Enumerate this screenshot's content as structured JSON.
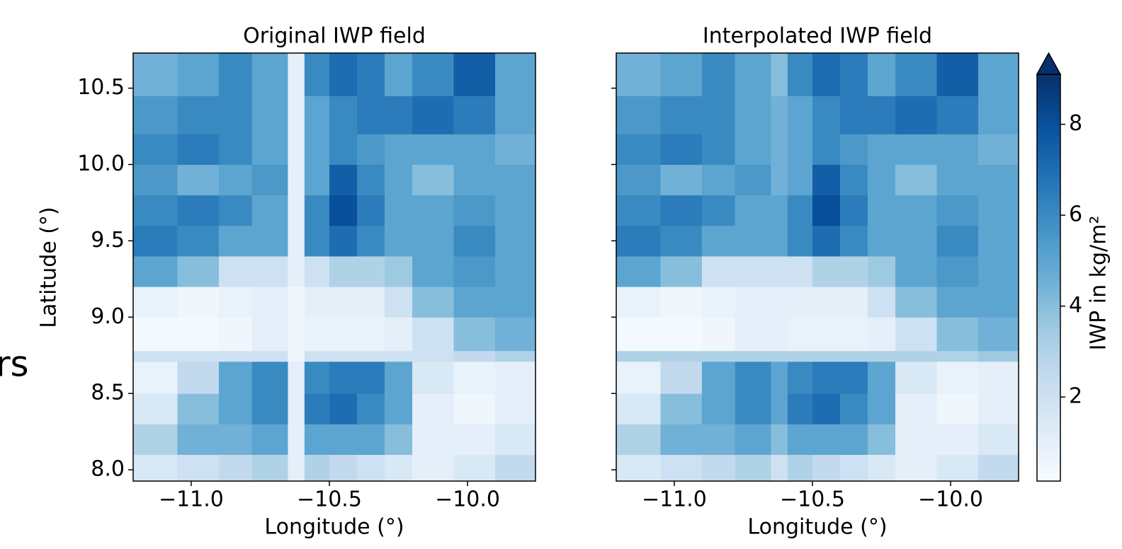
{
  "fragment": "rs",
  "chart_data": [
    {
      "type": "heatmap",
      "title": "Original IWP field",
      "xlabel": "Longitude (°)",
      "ylabel": "Latitude (°)",
      "xlim": [
        -11.21,
        -9.754
      ],
      "ylim": [
        7.926,
        10.73
      ],
      "zlim": [
        0.15,
        9.1
      ],
      "xticks": [
        {
          "value": -11,
          "label": "−11.0"
        },
        {
          "value": -10.5,
          "label": "−10.5"
        },
        {
          "value": -10,
          "label": "−10.0"
        }
      ],
      "yticks": [
        {
          "value": 8,
          "label": "8.0"
        },
        8.5,
        {
          "value": 9,
          "label": "9.0"
        },
        9.5,
        {
          "value": 10,
          "label": "10.0"
        },
        10.5
      ],
      "ytick_labels": true,
      "x_edges": [
        -11.21,
        -11.05,
        -10.9,
        -10.78,
        -10.65,
        -10.59,
        -10.5,
        -10.4,
        -10.3,
        -10.2,
        -10.05,
        -9.9,
        -9.754
      ],
      "y_edges": [
        7.926,
        8.1,
        8.3,
        8.5,
        8.71,
        8.78,
        9.0,
        9.2,
        9.4,
        9.6,
        9.8,
        10.0,
        10.2,
        10.45,
        10.73
      ],
      "z": [
        [
          1.5,
          2,
          2.5,
          3,
          1,
          3,
          2.5,
          2,
          1.5,
          1,
          1.5,
          2.5
        ],
        [
          3,
          4.5,
          4.5,
          5,
          1,
          5,
          5,
          5,
          4,
          1,
          1,
          1.5
        ],
        [
          1.5,
          4,
          5,
          6,
          1,
          6.5,
          7,
          6,
          5,
          1,
          0.5,
          1
        ],
        [
          0.8,
          2.5,
          5,
          6,
          1,
          6,
          6.5,
          6.5,
          5,
          1.5,
          0.8,
          1
        ],
        [
          2,
          2,
          2,
          2,
          0.5,
          2,
          2,
          2,
          2,
          2,
          2.5,
          3
        ],
        [
          0.3,
          0.3,
          0.5,
          1,
          0.5,
          0.8,
          0.8,
          0.8,
          1,
          2,
          4,
          4.5
        ],
        [
          0.8,
          0.5,
          0.8,
          1,
          0.5,
          1,
          1,
          1,
          2,
          4,
          5,
          5
        ],
        [
          5,
          4,
          2,
          2,
          1,
          2,
          3,
          3,
          3.5,
          5,
          5.5,
          5
        ],
        [
          6.5,
          6,
          5,
          5,
          1,
          6,
          7,
          6,
          5,
          5,
          6,
          5
        ],
        [
          6,
          6.5,
          6,
          5,
          1,
          6,
          8,
          6.5,
          5,
          5,
          5.5,
          5
        ],
        [
          5.5,
          4.5,
          5,
          5.5,
          1,
          5,
          7.5,
          6,
          5,
          4,
          5,
          5
        ],
        [
          6,
          6.5,
          6,
          5,
          1,
          5,
          6,
          5.5,
          5,
          5,
          5,
          4.5
        ],
        [
          5.5,
          6,
          6,
          5,
          1,
          5,
          6,
          6.5,
          6.5,
          7,
          6.5,
          5
        ],
        [
          4.5,
          5,
          6,
          5,
          1,
          6,
          7,
          6.5,
          5,
          6,
          7.5,
          5
        ]
      ]
    },
    {
      "type": "heatmap",
      "title": "Interpolated IWP field",
      "xlabel": "Longitude (°)",
      "xlim": [
        -11.21,
        -9.754
      ],
      "ylim": [
        7.926,
        10.73
      ],
      "zlim": [
        0.15,
        9.1
      ],
      "xticks": [
        {
          "value": -11,
          "label": "−11.0"
        },
        {
          "value": -10.5,
          "label": "−10.5"
        },
        {
          "value": -10,
          "label": "−10.0"
        }
      ],
      "yticks": [
        8,
        8.5,
        9,
        9.5,
        10,
        10.5
      ],
      "ytick_labels": false,
      "x_edges": [
        -11.21,
        -11.05,
        -10.9,
        -10.78,
        -10.65,
        -10.59,
        -10.5,
        -10.4,
        -10.3,
        -10.2,
        -10.05,
        -9.9,
        -9.754
      ],
      "y_edges": [
        7.926,
        8.1,
        8.3,
        8.5,
        8.71,
        8.78,
        9.0,
        9.2,
        9.4,
        9.6,
        9.8,
        10.0,
        10.2,
        10.45,
        10.73
      ],
      "z": [
        [
          1.5,
          2,
          2.5,
          3,
          2,
          3,
          2.5,
          2,
          1.5,
          1,
          1.5,
          2.5
        ],
        [
          3,
          4.5,
          4.5,
          5,
          4,
          5,
          5,
          5,
          4,
          1,
          1,
          1.5
        ],
        [
          1.5,
          4,
          5,
          6,
          5,
          6.5,
          7,
          6,
          5,
          1,
          0.5,
          1
        ],
        [
          0.8,
          2.5,
          5,
          6,
          5,
          6,
          6.5,
          6.5,
          5,
          1.5,
          0.8,
          1
        ],
        [
          3,
          3,
          3,
          3,
          3,
          3,
          3,
          3,
          3,
          3,
          3,
          3.5
        ],
        [
          0.3,
          0.3,
          0.5,
          1,
          1,
          0.8,
          0.8,
          0.8,
          1,
          2,
          4,
          4.5
        ],
        [
          0.8,
          0.5,
          0.8,
          1,
          1,
          1,
          1,
          1,
          2,
          4,
          5,
          5
        ],
        [
          5,
          4,
          2,
          2,
          2,
          2,
          3,
          3,
          3.5,
          5,
          5.5,
          5
        ],
        [
          6.5,
          6,
          5,
          5,
          5,
          6,
          7,
          6,
          5,
          5,
          6,
          5
        ],
        [
          6,
          6.5,
          6,
          5,
          5,
          6,
          8,
          6.5,
          5,
          5,
          5.5,
          5
        ],
        [
          5.5,
          4.5,
          5,
          5.5,
          4.5,
          5,
          7.5,
          6,
          5,
          4,
          5,
          5
        ],
        [
          6,
          6.5,
          6,
          5,
          4.5,
          5,
          6,
          5.5,
          5,
          5,
          5,
          4.5
        ],
        [
          5.5,
          6,
          6,
          5,
          4.5,
          5,
          6,
          6.5,
          6.5,
          7,
          6.5,
          5
        ],
        [
          4.5,
          5,
          6,
          5,
          4,
          6,
          7,
          6.5,
          5,
          6,
          7.5,
          5
        ]
      ]
    }
  ],
  "colorbar": {
    "label": "IWP in kg/m²",
    "lim": [
      0.15,
      9.1
    ],
    "ticks": [
      2,
      4,
      6,
      8
    ],
    "extend": "max",
    "colormap": [
      "#f7fbff",
      "#deebf7",
      "#c6dbef",
      "#9ecae1",
      "#6baed6",
      "#4292c6",
      "#2171b5",
      "#08519c",
      "#08306b"
    ]
  }
}
